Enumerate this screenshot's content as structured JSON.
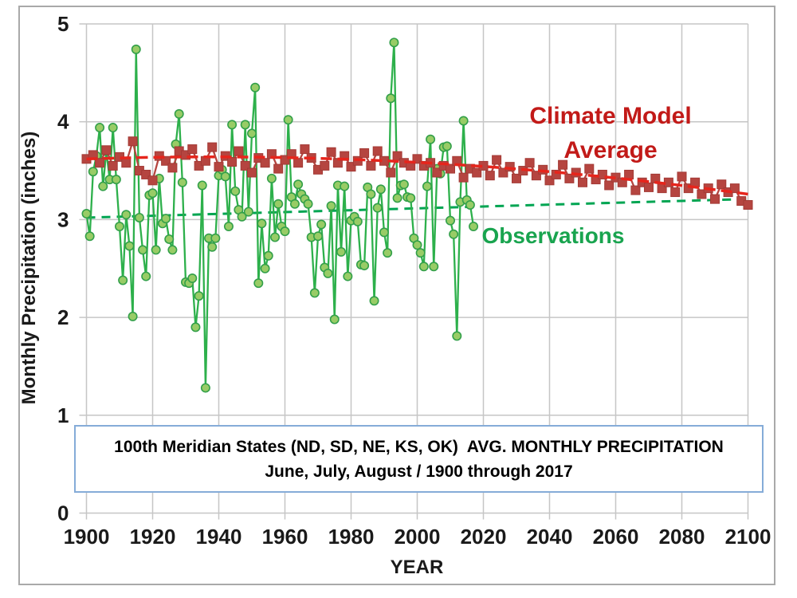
{
  "frame": {
    "border_color": "#a9a9a9",
    "background": "#ffffff"
  },
  "axes": {
    "x_title": "YEAR",
    "y_title": "Monthly Precipitation (inches)",
    "tick_color": "#1a1a1a",
    "grid_color": "#c6c6c6"
  },
  "labels": {
    "model_line1": "Climate Model",
    "model_line2": "Average",
    "model_color": "#c21a18",
    "observations": "Observations",
    "observations_color": "#19a44f"
  },
  "caption": {
    "line1": "100th Meridian States (ND, SD, NE, KS, OK)  AVG. MONTHLY PRECIPITATION",
    "line2": "June, July, August / 1900 through 2017",
    "border_color": "#85acd8"
  },
  "chart_data": {
    "type": "line",
    "title": "100th Meridian States (ND, SD, NE, KS, OK) AVG. MONTHLY PRECIPITATION, June, July, August / 1900 through 2017",
    "xlabel": "YEAR",
    "ylabel": "Monthly Precipitation (inches)",
    "xlim": [
      1900,
      2100
    ],
    "ylim": [
      0,
      5
    ],
    "xticks": [
      1900,
      1920,
      1940,
      1960,
      1980,
      2000,
      2020,
      2040,
      2060,
      2080,
      2100
    ],
    "yticks": [
      0,
      1,
      2,
      3,
      4,
      5
    ],
    "grid": true,
    "legend_position": "annotations-inside",
    "series": [
      {
        "name": "Observations",
        "marker": "circle",
        "line_color": "#2db04b",
        "marker_fill": "#98cc66",
        "marker_stroke": "#33a04a",
        "x_start": 1900,
        "x_step": 1,
        "values": [
          3.06,
          2.83,
          3.49,
          3.65,
          3.94,
          3.34,
          3.7,
          3.41,
          3.94,
          3.41,
          2.93,
          2.38,
          3.05,
          2.73,
          2.01,
          4.74,
          3.02,
          2.69,
          2.42,
          3.25,
          3.27,
          2.69,
          3.42,
          2.96,
          3.01,
          2.8,
          2.69,
          3.77,
          4.08,
          3.38,
          2.36,
          2.35,
          2.4,
          1.9,
          2.22,
          3.35,
          1.28,
          2.81,
          2.72,
          2.81,
          3.45,
          3.51,
          3.44,
          2.93,
          3.97,
          3.29,
          3.1,
          3.03,
          3.97,
          3.08,
          3.88,
          4.35,
          2.35,
          2.96,
          2.5,
          2.63,
          3.42,
          2.82,
          3.16,
          2.93,
          2.88,
          4.02,
          3.23,
          3.16,
          3.36,
          3.26,
          3.21,
          3.16,
          2.82,
          2.25,
          2.83,
          2.95,
          2.51,
          2.45,
          3.14,
          1.98,
          3.35,
          2.67,
          3.34,
          2.42,
          2.99,
          3.03,
          2.98,
          2.54,
          2.53,
          3.33,
          3.26,
          2.17,
          3.12,
          3.31,
          2.87,
          2.66,
          4.24,
          4.81,
          3.22,
          3.35,
          3.36,
          3.23,
          3.22,
          2.81,
          2.74,
          2.66,
          2.52,
          3.34,
          3.82,
          2.52,
          3.52,
          3.47,
          3.74,
          3.75,
          2.99,
          2.85,
          1.81,
          3.18,
          4.01,
          3.2,
          3.15,
          2.93
        ]
      },
      {
        "name": "Climate Model Average",
        "marker": "square",
        "line_color": "#b54540",
        "marker_fill": "#b54540",
        "marker_stroke": "#a33a35",
        "x_start": 1900,
        "x_step": 2,
        "values": [
          3.62,
          3.66,
          3.58,
          3.71,
          3.55,
          3.64,
          3.58,
          3.8,
          3.5,
          3.46,
          3.4,
          3.65,
          3.6,
          3.53,
          3.7,
          3.66,
          3.72,
          3.55,
          3.6,
          3.74,
          3.54,
          3.65,
          3.59,
          3.7,
          3.55,
          3.48,
          3.63,
          3.58,
          3.67,
          3.52,
          3.61,
          3.67,
          3.58,
          3.72,
          3.63,
          3.51,
          3.55,
          3.69,
          3.58,
          3.65,
          3.54,
          3.6,
          3.68,
          3.55,
          3.7,
          3.6,
          3.48,
          3.65,
          3.58,
          3.55,
          3.62,
          3.55,
          3.58,
          3.48,
          3.55,
          3.52,
          3.6,
          3.43,
          3.52,
          3.48,
          3.55,
          3.45,
          3.61,
          3.48,
          3.54,
          3.42,
          3.5,
          3.58,
          3.45,
          3.51,
          3.4,
          3.46,
          3.56,
          3.42,
          3.48,
          3.38,
          3.52,
          3.41,
          3.46,
          3.35,
          3.43,
          3.38,
          3.46,
          3.3,
          3.38,
          3.33,
          3.42,
          3.32,
          3.38,
          3.28,
          3.44,
          3.32,
          3.38,
          3.26,
          3.32,
          3.21,
          3.36,
          3.28,
          3.32,
          3.19,
          3.15
        ]
      }
    ],
    "trendlines": [
      {
        "series": "Observations",
        "style": "dashed",
        "color": "#00a552",
        "width": 3,
        "dash": "11 8",
        "points": [
          [
            1900,
            3.02
          ],
          [
            2100,
            3.21
          ]
        ]
      },
      {
        "series": "Climate Model Average",
        "style": "dashed",
        "color": "#e6251c",
        "width": 3.5,
        "dash": "14 7",
        "points": [
          [
            1900,
            3.62
          ],
          [
            2000,
            3.585
          ],
          [
            2100,
            3.26
          ]
        ]
      }
    ]
  }
}
